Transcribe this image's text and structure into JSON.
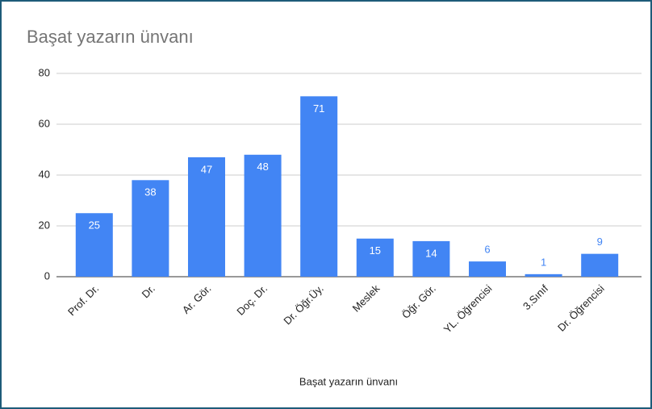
{
  "chart_data": {
    "type": "bar",
    "title": "Başat yazarın ünvanı",
    "x_label": "Başat yazarın ünvanı",
    "categories": [
      "Prof. Dr.",
      "Dr.",
      "Ar. Gör.",
      "Doç. Dr.",
      "Dr. Öğr.Üy.",
      "Meslek",
      "Öğr. Gör.",
      "YL. Öğrencisi",
      "3.Sınıf",
      "Dr. Öğrencisi"
    ],
    "values": [
      25,
      38,
      47,
      48,
      71,
      15,
      14,
      6,
      1,
      9
    ],
    "color": "#4285f4",
    "ylim": [
      0,
      80
    ],
    "yticks": [
      0,
      20,
      40,
      60,
      80
    ],
    "grid": true
  }
}
